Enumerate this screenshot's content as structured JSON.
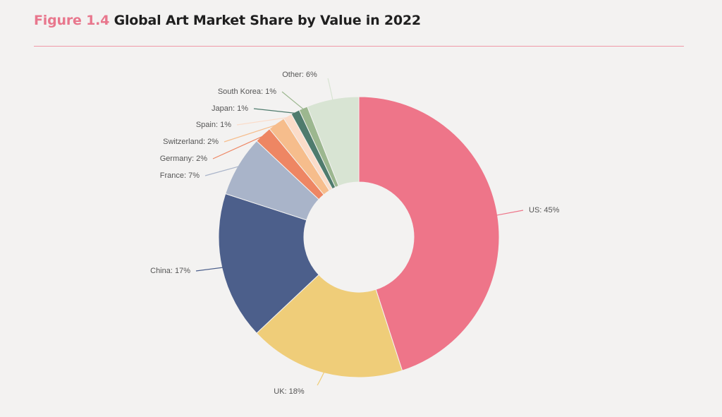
{
  "header": {
    "figure_label": "Figure 1.4",
    "title": "Global Art Market Share by Value in 2022"
  },
  "colors": {
    "figure_label": "#e8778d",
    "rule": "#ef9aa8",
    "background": "#f3f2f1"
  },
  "chart_data": {
    "type": "pie",
    "variant": "donut",
    "title": "Global Art Market Share by Value in 2022",
    "slices": [
      {
        "label": "US: 45%",
        "name": "US",
        "value": 45,
        "color": "#ee7589",
        "label_side": "right"
      },
      {
        "label": "UK: 18%",
        "name": "UK",
        "value": 18,
        "color": "#efcd79",
        "label_side": "bottom"
      },
      {
        "label": "China: 17%",
        "name": "China",
        "value": 17,
        "color": "#4c5f8b",
        "label_side": "left"
      },
      {
        "label": "France: 7%",
        "name": "France",
        "value": 7,
        "color": "#a9b4c9",
        "label_side": "left"
      },
      {
        "label": "Germany: 2%",
        "name": "Germany",
        "value": 2,
        "color": "#ee8663",
        "label_side": "left"
      },
      {
        "label": "Switzerland: 2%",
        "name": "Switzerland",
        "value": 2,
        "color": "#f6bd8c",
        "label_side": "left"
      },
      {
        "label": "Spain: 1%",
        "name": "Spain",
        "value": 1,
        "color": "#fbdcc9",
        "label_side": "left"
      },
      {
        "label": "Japan: 1%",
        "name": "Japan",
        "value": 1,
        "color": "#4f7b6d",
        "label_side": "left"
      },
      {
        "label": "South Korea: 1%",
        "name": "South Korea",
        "value": 1,
        "color": "#9cb78f",
        "label_side": "left"
      },
      {
        "label": "Other: 6%",
        "name": "Other",
        "value": 6,
        "color": "#d8e4d3",
        "label_side": "top"
      }
    ]
  }
}
